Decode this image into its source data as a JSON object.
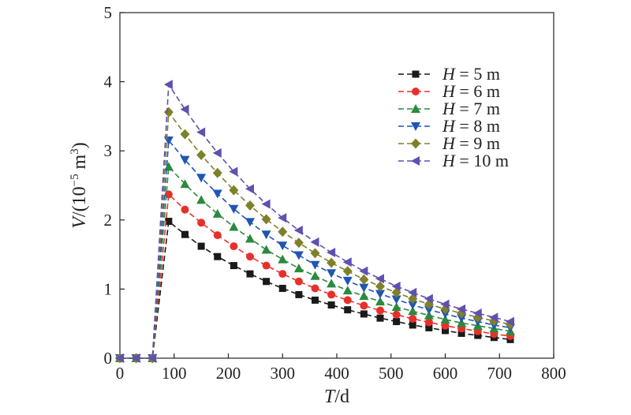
{
  "chart_data": {
    "type": "line",
    "xlabel_var": "T",
    "xlabel_unit": "/d",
    "ylabel_var": "V",
    "ylabel_unit_pre": "/(10",
    "ylabel_exp": "−5",
    "ylabel_unit_mid": " m",
    "ylabel_exp2": "3",
    "ylabel_unit_post": ")",
    "xlim": [
      0,
      800
    ],
    "ylim": [
      0,
      5
    ],
    "xticks": [
      0,
      100,
      200,
      300,
      400,
      500,
      600,
      700,
      800
    ],
    "yticks": [
      0,
      1,
      2,
      3,
      4,
      5
    ],
    "legend_position": "top-right",
    "x": [
      0,
      30,
      60,
      90,
      120,
      150,
      180,
      210,
      240,
      270,
      300,
      330,
      360,
      390,
      420,
      450,
      480,
      510,
      540,
      570,
      600,
      630,
      660,
      690,
      720
    ],
    "series": [
      {
        "var": "H",
        "eq": " = ",
        "name": "5 m",
        "color": "#1a1a1a",
        "marker": "square",
        "values": [
          0,
          0,
          0,
          1.98,
          1.79,
          1.62,
          1.47,
          1.34,
          1.22,
          1.11,
          1.01,
          0.92,
          0.84,
          0.77,
          0.7,
          0.64,
          0.58,
          0.53,
          0.48,
          0.44,
          0.4,
          0.36,
          0.33,
          0.3,
          0.27
        ]
      },
      {
        "var": "H",
        "eq": " = ",
        "name": "6 m",
        "color": "#e8302a",
        "marker": "circle",
        "values": [
          0,
          0,
          0,
          2.37,
          2.15,
          1.96,
          1.78,
          1.62,
          1.47,
          1.34,
          1.22,
          1.11,
          1.01,
          0.92,
          0.84,
          0.76,
          0.69,
          0.63,
          0.57,
          0.52,
          0.47,
          0.43,
          0.39,
          0.35,
          0.32
        ]
      },
      {
        "var": "H",
        "eq": " = ",
        "name": "7 m",
        "color": "#2a8a3e",
        "marker": "triangle-up",
        "values": [
          0,
          0,
          0,
          2.77,
          2.52,
          2.29,
          2.09,
          1.9,
          1.73,
          1.57,
          1.43,
          1.3,
          1.19,
          1.08,
          0.98,
          0.9,
          0.82,
          0.74,
          0.68,
          0.62,
          0.56,
          0.51,
          0.47,
          0.43,
          0.39
        ]
      },
      {
        "var": "H",
        "eq": " = ",
        "name": "8 m",
        "color": "#1f56b4",
        "marker": "triangle-down",
        "values": [
          0,
          0,
          0,
          3.15,
          2.87,
          2.61,
          2.38,
          2.16,
          1.97,
          1.79,
          1.63,
          1.49,
          1.35,
          1.23,
          1.12,
          1.02,
          0.93,
          0.85,
          0.77,
          0.7,
          0.64,
          0.58,
          0.53,
          0.48,
          0.44
        ]
      },
      {
        "var": "H",
        "eq": " = ",
        "name": "9 m",
        "color": "#80802a",
        "marker": "diamond",
        "values": [
          0,
          0,
          0,
          3.56,
          3.24,
          2.94,
          2.68,
          2.43,
          2.21,
          2.01,
          1.83,
          1.67,
          1.52,
          1.38,
          1.26,
          1.14,
          1.04,
          0.95,
          0.86,
          0.78,
          0.71,
          0.65,
          0.59,
          0.54,
          0.49
        ]
      },
      {
        "var": "H",
        "eq": " = ",
        "name": "10 m",
        "color": "#6050b0",
        "marker": "triangle-left",
        "values": [
          0,
          0,
          0,
          3.96,
          3.6,
          3.27,
          2.97,
          2.7,
          2.45,
          2.23,
          2.03,
          1.85,
          1.68,
          1.53,
          1.39,
          1.26,
          1.15,
          1.04,
          0.95,
          0.86,
          0.78,
          0.71,
          0.65,
          0.59,
          0.53
        ]
      }
    ]
  }
}
